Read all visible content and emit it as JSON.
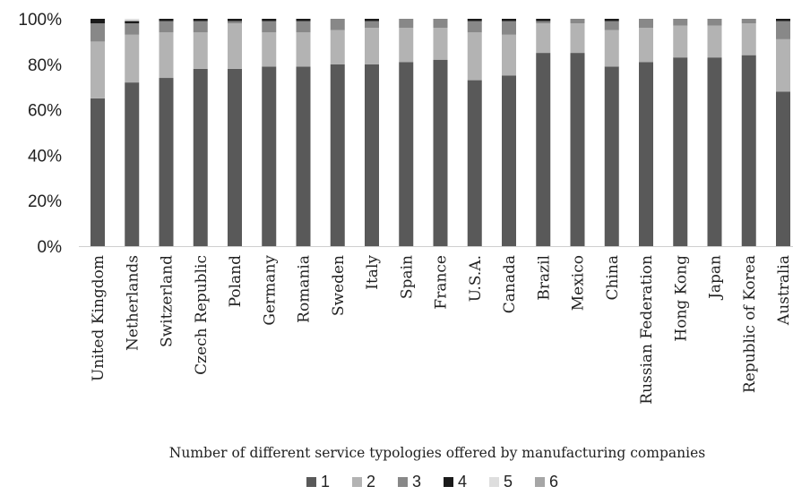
{
  "chart_data": {
    "type": "bar",
    "stacked": true,
    "percent_stacked": true,
    "title": "",
    "xlabel": "Number of different service typologies offered by  manufacturing companies",
    "ylabel": "",
    "ylim": [
      0,
      100
    ],
    "yticks": [
      "0%",
      "20%",
      "40%",
      "60%",
      "80%",
      "100%"
    ],
    "grid": false,
    "legend_position": "bottom",
    "categories": [
      "United Kingdom",
      "Netherlands",
      "Switzerland",
      "Czech Republic",
      "Poland",
      "Germany",
      "Romania",
      "Sweden",
      "Italy",
      "Spain",
      "France",
      "U.S.A.",
      "Canada",
      "Brazil",
      "Mexico",
      "China",
      "Russian Federation",
      "Hong Kong",
      "Japan",
      "Republic of Korea",
      "Australia"
    ],
    "series": [
      {
        "name": "1",
        "color": "#595959",
        "values": [
          65,
          72,
          74,
          78,
          78,
          79,
          79,
          80,
          80,
          81,
          82,
          73,
          75,
          85,
          85,
          79,
          81,
          83,
          83,
          84,
          68
        ]
      },
      {
        "name": "2",
        "color": "#b3b3b3",
        "values": [
          25,
          21,
          20,
          16,
          20,
          15,
          15,
          15,
          16,
          15,
          14,
          21,
          18,
          13,
          13,
          16,
          15,
          14,
          14,
          14,
          23
        ]
      },
      {
        "name": "3",
        "color": "#888888",
        "values": [
          8,
          5,
          5,
          5,
          1,
          5,
          5,
          5,
          3,
          4,
          4,
          5,
          6,
          1,
          2,
          4,
          4,
          3,
          3,
          2,
          8
        ]
      },
      {
        "name": "4",
        "color": "#1a1a1a",
        "values": [
          2,
          1,
          1,
          1,
          1,
          1,
          1,
          0,
          1,
          0,
          0,
          1,
          1,
          1,
          0,
          1,
          0,
          0,
          0,
          0,
          1
        ]
      },
      {
        "name": "5",
        "color": "#dedede",
        "values": [
          0,
          1,
          0,
          0,
          0,
          0,
          0,
          0,
          0,
          0,
          0,
          0,
          0,
          0,
          0,
          0,
          0,
          0,
          0,
          0,
          0
        ]
      },
      {
        "name": "6",
        "color": "#a6a6a6",
        "values": [
          0,
          0,
          0,
          0,
          0,
          0,
          0,
          0,
          0,
          0,
          0,
          0,
          0,
          0,
          0,
          0,
          0,
          0,
          0,
          0,
          0
        ]
      }
    ]
  }
}
